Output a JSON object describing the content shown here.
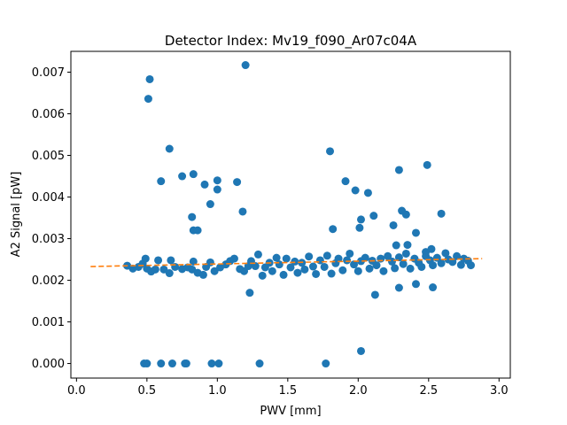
{
  "chart_data": {
    "type": "scatter",
    "title": "Detector Index: Mv19_f090_Ar07c04A",
    "xlabel": "PWV [mm]",
    "ylabel": "A2 Signal [pW]",
    "xlim": [
      -0.04,
      3.08
    ],
    "ylim": [
      -0.00035,
      0.0075
    ],
    "xticks": [
      0.0,
      0.5,
      1.0,
      1.5,
      2.0,
      2.5,
      3.0
    ],
    "xtick_labels": [
      "0.0",
      "0.5",
      "1.0",
      "1.5",
      "2.0",
      "2.5",
      "3.0"
    ],
    "yticks": [
      0.0,
      0.001,
      0.002,
      0.003,
      0.004,
      0.005,
      0.006,
      0.007
    ],
    "ytick_labels": [
      "0.000",
      "0.001",
      "0.002",
      "0.003",
      "0.004",
      "0.005",
      "0.006",
      "0.007"
    ],
    "grid": false,
    "colors": {
      "points": "#1f77b4",
      "fit": "#ff7f0e",
      "axes": "#000000",
      "background": "#ffffff"
    },
    "series": [
      {
        "name": "data",
        "kind": "scatter",
        "points": [
          [
            0.52,
            0.00683
          ],
          [
            0.51,
            0.00636
          ],
          [
            1.2,
            0.00717
          ],
          [
            1.8,
            0.0051
          ],
          [
            0.66,
            0.00516
          ],
          [
            2.29,
            0.00465
          ],
          [
            2.49,
            0.00477
          ],
          [
            0.6,
            0.00438
          ],
          [
            0.75,
            0.0045
          ],
          [
            0.83,
            0.00455
          ],
          [
            0.91,
            0.0043
          ],
          [
            1.0,
            0.0044
          ],
          [
            1.0,
            0.00418
          ],
          [
            1.14,
            0.00436
          ],
          [
            0.95,
            0.00383
          ],
          [
            1.91,
            0.00438
          ],
          [
            1.98,
            0.00416
          ],
          [
            2.07,
            0.0041
          ],
          [
            0.82,
            0.00352
          ],
          [
            1.18,
            0.00365
          ],
          [
            2.02,
            0.00346
          ],
          [
            2.11,
            0.00355
          ],
          [
            2.31,
            0.00367
          ],
          [
            2.34,
            0.00358
          ],
          [
            2.59,
            0.0036
          ],
          [
            0.83,
            0.0032
          ],
          [
            0.86,
            0.0032
          ],
          [
            1.82,
            0.00323
          ],
          [
            2.01,
            0.00326
          ],
          [
            2.25,
            0.00332
          ],
          [
            2.41,
            0.00314
          ],
          [
            2.27,
            0.00284
          ],
          [
            2.35,
            0.00285
          ],
          [
            2.48,
            0.00268
          ],
          [
            2.52,
            0.00275
          ],
          [
            1.23,
            0.0017
          ],
          [
            2.12,
            0.00165
          ],
          [
            2.29,
            0.00182
          ],
          [
            2.41,
            0.00191
          ],
          [
            2.53,
            0.00183
          ],
          [
            0.48,
            0.0
          ],
          [
            0.5,
            0.0
          ],
          [
            0.6,
            0.0
          ],
          [
            0.68,
            0.0
          ],
          [
            0.77,
            0.0
          ],
          [
            0.78,
            0.0
          ],
          [
            0.96,
            0.0
          ],
          [
            1.01,
            0.0
          ],
          [
            1.3,
            0.0
          ],
          [
            1.77,
            0.0
          ],
          [
            2.02,
            0.0003
          ],
          [
            0.36,
            0.00235
          ],
          [
            0.4,
            0.00228
          ],
          [
            0.44,
            0.00232
          ],
          [
            0.47,
            0.0024
          ],
          [
            0.49,
            0.00252
          ],
          [
            0.5,
            0.00228
          ],
          [
            0.53,
            0.00221
          ],
          [
            0.56,
            0.00226
          ],
          [
            0.58,
            0.00248
          ],
          [
            0.62,
            0.00226
          ],
          [
            0.66,
            0.00217
          ],
          [
            0.67,
            0.00248
          ],
          [
            0.7,
            0.00232
          ],
          [
            0.75,
            0.00227
          ],
          [
            0.79,
            0.00231
          ],
          [
            0.82,
            0.00226
          ],
          [
            0.83,
            0.00245
          ],
          [
            0.86,
            0.00218
          ],
          [
            0.9,
            0.00213
          ],
          [
            0.92,
            0.00232
          ],
          [
            0.95,
            0.00243
          ],
          [
            0.98,
            0.00222
          ],
          [
            1.02,
            0.00231
          ],
          [
            1.06,
            0.00238
          ],
          [
            1.09,
            0.00246
          ],
          [
            1.12,
            0.00252
          ],
          [
            1.16,
            0.00227
          ],
          [
            1.19,
            0.00222
          ],
          [
            1.22,
            0.00234
          ],
          [
            1.24,
            0.00246
          ],
          [
            1.27,
            0.00234
          ],
          [
            1.29,
            0.00262
          ],
          [
            1.32,
            0.00211
          ],
          [
            1.34,
            0.00231
          ],
          [
            1.37,
            0.00242
          ],
          [
            1.39,
            0.00222
          ],
          [
            1.42,
            0.00254
          ],
          [
            1.44,
            0.00238
          ],
          [
            1.47,
            0.00213
          ],
          [
            1.49,
            0.00252
          ],
          [
            1.52,
            0.00231
          ],
          [
            1.55,
            0.00245
          ],
          [
            1.57,
            0.00218
          ],
          [
            1.6,
            0.00242
          ],
          [
            1.62,
            0.00226
          ],
          [
            1.65,
            0.00257
          ],
          [
            1.68,
            0.00233
          ],
          [
            1.7,
            0.00215
          ],
          [
            1.73,
            0.00248
          ],
          [
            1.76,
            0.00232
          ],
          [
            1.78,
            0.00259
          ],
          [
            1.81,
            0.00216
          ],
          [
            1.84,
            0.00241
          ],
          [
            1.86,
            0.00252
          ],
          [
            1.89,
            0.00224
          ],
          [
            1.92,
            0.00248
          ],
          [
            1.94,
            0.00264
          ],
          [
            1.97,
            0.00238
          ],
          [
            2.0,
            0.00222
          ],
          [
            2.02,
            0.00246
          ],
          [
            2.05,
            0.00254
          ],
          [
            2.08,
            0.00228
          ],
          [
            2.1,
            0.00247
          ],
          [
            2.13,
            0.00236
          ],
          [
            2.16,
            0.00252
          ],
          [
            2.18,
            0.00222
          ],
          [
            2.21,
            0.00258
          ],
          [
            2.24,
            0.00245
          ],
          [
            2.26,
            0.00229
          ],
          [
            2.29,
            0.00255
          ],
          [
            2.32,
            0.00239
          ],
          [
            2.34,
            0.00264
          ],
          [
            2.37,
            0.00228
          ],
          [
            2.4,
            0.00252
          ],
          [
            2.43,
            0.00242
          ],
          [
            2.45,
            0.00232
          ],
          [
            2.48,
            0.00258
          ],
          [
            2.51,
            0.00248
          ],
          [
            2.53,
            0.00236
          ],
          [
            2.56,
            0.00254
          ],
          [
            2.59,
            0.00241
          ],
          [
            2.62,
            0.00265
          ],
          [
            2.64,
            0.0025
          ],
          [
            2.67,
            0.00244
          ],
          [
            2.7,
            0.00258
          ],
          [
            2.73,
            0.00237
          ],
          [
            2.75,
            0.00252
          ],
          [
            2.78,
            0.00247
          ],
          [
            2.8,
            0.00236
          ]
        ]
      },
      {
        "name": "fit",
        "kind": "line",
        "style": "dashed",
        "x": [
          0.1,
          2.88
        ],
        "y": [
          0.00233,
          0.00252
        ]
      }
    ]
  }
}
